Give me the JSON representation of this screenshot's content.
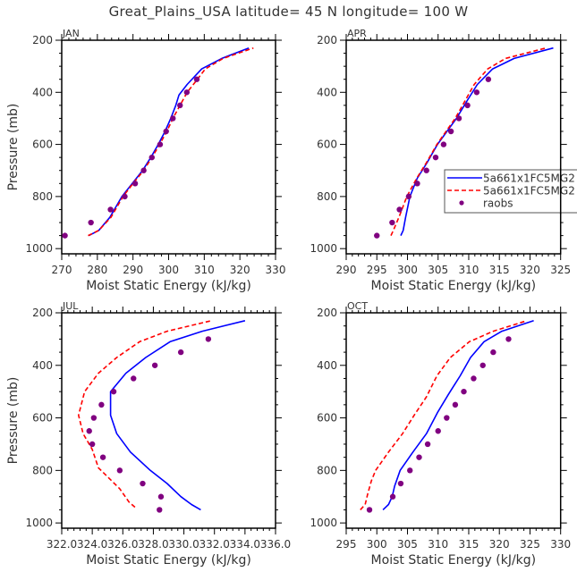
{
  "figure": {
    "title": "Great_Plains_USA   latitude= 45 N longitude= 100 W"
  },
  "colors": {
    "model1": "#0000ff",
    "model2": "#ff0000",
    "raobs": "#800080",
    "axis": "#000000",
    "text": "#333333"
  },
  "legend": {
    "panel": "APR",
    "entries": [
      {
        "label": "5a661x1FC5MG2",
        "style": "solid",
        "color": "#0000ff"
      },
      {
        "label": "5a661x1FC5MG2",
        "style": "dashed",
        "color": "#ff0000"
      },
      {
        "label": "raobs",
        "style": "marker",
        "color": "#800080"
      }
    ]
  },
  "chart_data": [
    {
      "type": "line",
      "title": "JAN",
      "xlabel": "Moist Static Energy (kJ/kg)",
      "ylabel": "Pressure (mb)",
      "xlim": [
        270,
        330
      ],
      "ylim": [
        1020,
        200
      ],
      "y_inverted": true,
      "xticks": [
        270,
        280,
        290,
        300,
        310,
        320,
        330
      ],
      "xtick_labels": [
        "270",
        "280",
        "290",
        "300",
        "310",
        "320",
        "330"
      ],
      "x_minor_step": 2,
      "yticks": [
        200,
        400,
        600,
        800,
        1000
      ],
      "ytick_labels": [
        "200",
        "400",
        "600",
        "800",
        "1000"
      ],
      "y_minor_step": 50,
      "show_ylabel": true,
      "series": [
        {
          "name": "5a661x1FC5MG2",
          "style": "solid",
          "color": "#0000ff",
          "x": [
            277.6,
            280.4,
            283.5,
            286.9,
            289.8,
            292.7,
            295.0,
            297.1,
            299.0,
            300.6,
            302.0,
            302.9,
            305.2,
            309.3,
            314.9,
            322.5
          ],
          "y": [
            950,
            930,
            880,
            800,
            750,
            700,
            650,
            600,
            550,
            500,
            450,
            410,
            370,
            310,
            270,
            230
          ]
        },
        {
          "name": "5a661x1FC5MG2",
          "style": "dashed",
          "color": "#ff0000",
          "x": [
            277.4,
            280.4,
            283.8,
            287.2,
            290.0,
            293.0,
            295.3,
            297.5,
            299.5,
            301.2,
            303.2,
            305.2,
            307.5,
            310.3,
            315.3,
            323.8
          ],
          "y": [
            950,
            930,
            880,
            800,
            750,
            700,
            650,
            600,
            550,
            500,
            450,
            400,
            360,
            310,
            270,
            230
          ]
        },
        {
          "name": "raobs",
          "style": "marker",
          "color": "#800080",
          "x": [
            270.9,
            278.2,
            283.7,
            287.7,
            290.6,
            293.0,
            295.3,
            297.6,
            299.3,
            301.2,
            303.2,
            305.1,
            307.9
          ],
          "y": [
            950,
            900,
            850,
            800,
            750,
            700,
            650,
            600,
            550,
            500,
            450,
            400,
            350
          ]
        }
      ]
    },
    {
      "type": "line",
      "title": "APR",
      "xlabel": "Moist Static Energy (kJ/kg)",
      "ylabel": "",
      "xlim": [
        290,
        325
      ],
      "ylim": [
        1020,
        200
      ],
      "y_inverted": true,
      "xticks": [
        290,
        295,
        300,
        305,
        310,
        315,
        320,
        325
      ],
      "xtick_labels": [
        "290",
        "295",
        "300",
        "305",
        "310",
        "315",
        "320",
        "325"
      ],
      "x_minor_step": 1,
      "yticks": [
        200,
        400,
        600,
        800,
        1000
      ],
      "ytick_labels": [
        "200",
        "400",
        "600",
        "800",
        "1000"
      ],
      "y_minor_step": 50,
      "show_ylabel": false,
      "series": [
        {
          "name": "5a661x1FC5MG2",
          "style": "solid",
          "color": "#0000ff",
          "x": [
            298.9,
            299.3,
            299.7,
            300.4,
            301.6,
            303.2,
            304.9,
            308.0,
            309.8,
            311.4,
            313.9,
            317.4,
            323.8
          ],
          "y": [
            950,
            930,
            880,
            800,
            730,
            670,
            600,
            500,
            430,
            370,
            310,
            270,
            230
          ]
        },
        {
          "name": "5a661x1FC5MG2",
          "style": "dashed",
          "color": "#ff0000",
          "x": [
            297.3,
            297.7,
            298.6,
            299.9,
            301.5,
            303.1,
            304.8,
            307.8,
            309.7,
            310.9,
            313.1,
            316.0,
            322.6
          ],
          "y": [
            950,
            930,
            880,
            800,
            730,
            670,
            600,
            500,
            420,
            370,
            310,
            270,
            230
          ]
        },
        {
          "name": "raobs",
          "style": "marker",
          "color": "#800080",
          "x": [
            295.0,
            297.5,
            298.7,
            300.2,
            301.6,
            303.1,
            304.6,
            305.9,
            307.1,
            308.4,
            309.8,
            311.3,
            313.2
          ],
          "y": [
            950,
            900,
            850,
            800,
            750,
            700,
            650,
            600,
            550,
            500,
            450,
            400,
            350
          ]
        }
      ]
    },
    {
      "type": "line",
      "title": "JUL",
      "xlabel": "Moist Static Energy (kJ/kg)",
      "ylabel": "Pressure (mb)",
      "xlim": [
        322.0,
        336.0
      ],
      "ylim": [
        1020,
        200
      ],
      "y_inverted": true,
      "xticks": [
        322,
        324,
        326,
        328,
        330,
        332,
        334,
        336
      ],
      "xtick_labels": [
        "322.0",
        "324.0",
        "326.0",
        "328.0",
        "330.0",
        "332.0",
        "334.0",
        "336.0"
      ],
      "x_minor_step": 0.4,
      "yticks": [
        200,
        400,
        600,
        800,
        1000
      ],
      "ytick_labels": [
        "200",
        "400",
        "600",
        "800",
        "1000"
      ],
      "y_minor_step": 50,
      "show_ylabel": true,
      "series": [
        {
          "name": "5a661x1FC5MG2",
          "style": "solid",
          "color": "#0000ff",
          "x": [
            331.1,
            330.5,
            329.8,
            328.9,
            327.8,
            326.5,
            325.6,
            325.2,
            325.2,
            326.2,
            327.5,
            329.1,
            331.2,
            334.0
          ],
          "y": [
            950,
            930,
            900,
            850,
            800,
            730,
            660,
            590,
            500,
            430,
            370,
            310,
            270,
            230
          ]
        },
        {
          "name": "5a661x1FC5MG2",
          "style": "dashed",
          "color": "#ff0000",
          "x": [
            326.8,
            326.4,
            325.8,
            324.4,
            324.0,
            323.4,
            323.1,
            323.5,
            324.4,
            325.6,
            327.1,
            328.9,
            331.8
          ],
          "y": [
            940,
            920,
            870,
            790,
            720,
            660,
            590,
            500,
            430,
            370,
            310,
            270,
            230
          ]
        },
        {
          "name": "raobs",
          "style": "marker",
          "color": "#800080",
          "x": [
            328.4,
            328.5,
            327.3,
            325.8,
            324.7,
            324.0,
            323.8,
            324.1,
            324.6,
            325.4,
            326.7,
            328.1,
            329.8,
            331.6
          ],
          "y": [
            950,
            900,
            850,
            800,
            750,
            700,
            650,
            600,
            550,
            500,
            450,
            400,
            350,
            300
          ]
        }
      ]
    },
    {
      "type": "line",
      "title": "OCT",
      "xlabel": "Moist Static Energy (kJ/kg)",
      "ylabel": "",
      "xlim": [
        295,
        330
      ],
      "ylim": [
        1020,
        200
      ],
      "y_inverted": true,
      "xticks": [
        295,
        300,
        305,
        310,
        315,
        320,
        325,
        330
      ],
      "xtick_labels": [
        "295",
        "300",
        "305",
        "310",
        "315",
        "320",
        "325",
        "330"
      ],
      "x_minor_step": 1,
      "yticks": [
        200,
        400,
        600,
        800,
        1000
      ],
      "ytick_labels": [
        "200",
        "400",
        "600",
        "800",
        "1000"
      ],
      "y_minor_step": 50,
      "show_ylabel": false,
      "series": [
        {
          "name": "5a661x1FC5MG2",
          "style": "solid",
          "color": "#0000ff",
          "x": [
            301.0,
            301.9,
            302.5,
            302.9,
            303.8,
            305.9,
            308.1,
            309.9,
            311.7,
            313.6,
            315.3,
            317.5,
            320.4,
            325.6
          ],
          "y": [
            950,
            930,
            900,
            860,
            800,
            730,
            660,
            580,
            510,
            440,
            370,
            310,
            270,
            230
          ]
        },
        {
          "name": "5a661x1FC5MG2",
          "style": "dashed",
          "color": "#ff0000",
          "x": [
            297.3,
            298.1,
            298.5,
            299.1,
            299.8,
            301.9,
            304.2,
            306.1,
            308.1,
            309.8,
            312.0,
            315.1,
            319.0,
            324.5
          ],
          "y": [
            950,
            930,
            890,
            840,
            800,
            730,
            660,
            590,
            520,
            440,
            370,
            310,
            270,
            230
          ]
        },
        {
          "name": "raobs",
          "style": "marker",
          "color": "#800080",
          "x": [
            298.8,
            302.6,
            303.9,
            305.4,
            306.9,
            308.3,
            310.0,
            311.4,
            312.8,
            314.2,
            315.8,
            317.3,
            319.0,
            321.5
          ],
          "y": [
            950,
            900,
            850,
            800,
            750,
            700,
            650,
            600,
            550,
            500,
            450,
            400,
            350,
            300
          ]
        }
      ]
    }
  ]
}
